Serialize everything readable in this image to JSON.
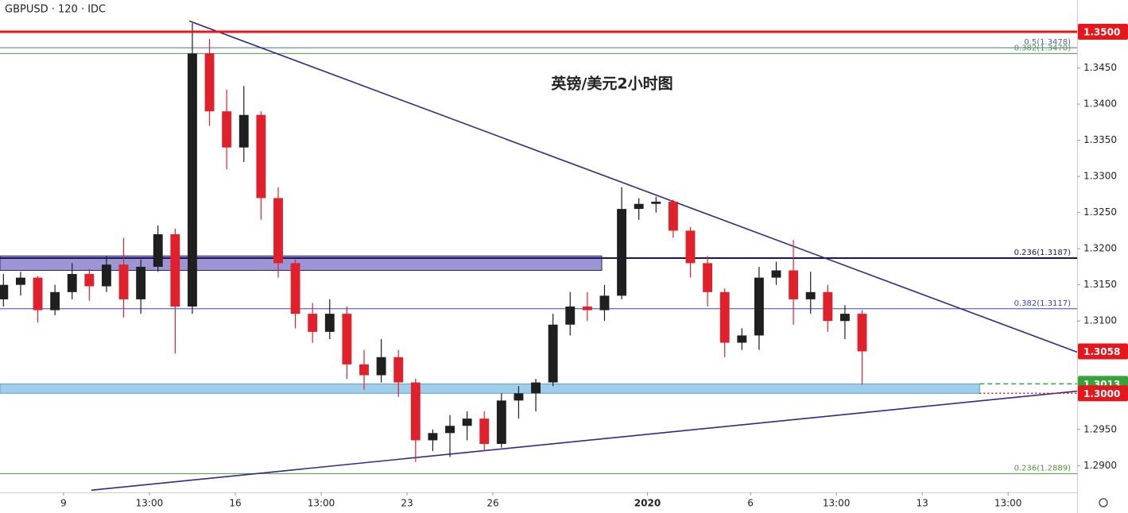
{
  "chart_data": {
    "type": "candlestick",
    "title": "GBPUSD · 120 · IDC",
    "annotation": "英镑/美元2小时图",
    "up_color": "#1f1f1f",
    "down_color": "#e0202a",
    "xlim": [
      -1.85,
      29.51
    ],
    "ylim": [
      1.2863,
      1.3544
    ],
    "xticks": [
      {
        "value": 0,
        "label": "9"
      },
      {
        "value": 2.5,
        "label": "13:00"
      },
      {
        "value": 5,
        "label": "16"
      },
      {
        "value": 7.5,
        "label": "13:00"
      },
      {
        "value": 10,
        "label": "23"
      },
      {
        "value": 12.5,
        "label": "26"
      },
      {
        "value": 17,
        "label": "2020"
      },
      {
        "value": 20,
        "label": "6"
      },
      {
        "value": 22.5,
        "label": "13:00"
      },
      {
        "value": 25,
        "label": "13"
      },
      {
        "value": 27.5,
        "label": "13:00"
      }
    ],
    "yticks": [
      {
        "value": 1.29,
        "label": "1.2900"
      },
      {
        "value": 1.295,
        "label": "1.2950"
      },
      {
        "value": 1.31,
        "label": "1.3100"
      },
      {
        "value": 1.315,
        "label": "1.3150"
      },
      {
        "value": 1.32,
        "label": "1.3200"
      },
      {
        "value": 1.325,
        "label": "1.3250"
      },
      {
        "value": 1.33,
        "label": "1.3300"
      },
      {
        "value": 1.335,
        "label": "1.3350"
      },
      {
        "value": 1.34,
        "label": "1.3400"
      },
      {
        "value": 1.345,
        "label": "1.3450"
      }
    ],
    "x": [
      -1.75,
      -1.25,
      -0.75,
      -0.25,
      0.25,
      0.75,
      1.25,
      1.75,
      2.25,
      2.75,
      3.25,
      3.75,
      4.25,
      4.75,
      5.25,
      5.75,
      6.25,
      6.75,
      7.25,
      7.75,
      8.25,
      8.75,
      9.25,
      9.75,
      10.25,
      10.75,
      11.25,
      11.75,
      12.25,
      12.75,
      13.25,
      13.75,
      14.25,
      14.75,
      15.25,
      15.75,
      16.25,
      16.75,
      17.25,
      17.75,
      18.25,
      18.75,
      19.25,
      19.75,
      20.25,
      20.75,
      21.25,
      21.75,
      22.25,
      22.75,
      23.25
    ],
    "ohlc": [
      [
        1.313,
        1.3165,
        1.312,
        1.315
      ],
      [
        1.315,
        1.3168,
        1.3135,
        1.316
      ],
      [
        1.316,
        1.3162,
        1.3098,
        1.3115
      ],
      [
        1.3115,
        1.315,
        1.3108,
        1.314
      ],
      [
        1.314,
        1.318,
        1.313,
        1.3165
      ],
      [
        1.3165,
        1.3172,
        1.3128,
        1.3148
      ],
      [
        1.3148,
        1.319,
        1.314,
        1.3178
      ],
      [
        1.3178,
        1.3215,
        1.3105,
        1.313
      ],
      [
        1.313,
        1.3185,
        1.311,
        1.3175
      ],
      [
        1.3175,
        1.3232,
        1.3168,
        1.322
      ],
      [
        1.322,
        1.3228,
        1.3055,
        1.312
      ],
      [
        1.312,
        1.3512,
        1.311,
        1.347
      ],
      [
        1.347,
        1.349,
        1.337,
        1.339
      ],
      [
        1.339,
        1.342,
        1.331,
        1.334
      ],
      [
        1.334,
        1.3425,
        1.332,
        1.3385
      ],
      [
        1.3385,
        1.339,
        1.324,
        1.327
      ],
      [
        1.327,
        1.3285,
        1.316,
        1.318
      ],
      [
        1.318,
        1.3185,
        1.309,
        1.311
      ],
      [
        1.311,
        1.3125,
        1.307,
        1.3085
      ],
      [
        1.3085,
        1.313,
        1.3075,
        1.311
      ],
      [
        1.311,
        1.312,
        1.302,
        1.304
      ],
      [
        1.304,
        1.306,
        1.3005,
        1.3025
      ],
      [
        1.3025,
        1.3075,
        1.3015,
        1.305
      ],
      [
        1.305,
        1.306,
        1.2995,
        1.3015
      ],
      [
        1.3015,
        1.302,
        1.2905,
        1.2935
      ],
      [
        1.2935,
        1.295,
        1.292,
        1.2945
      ],
      [
        1.2945,
        1.297,
        1.2912,
        1.2955
      ],
      [
        1.2955,
        1.2975,
        1.2935,
        1.2965
      ],
      [
        1.2965,
        1.2975,
        1.292,
        1.293
      ],
      [
        1.293,
        1.3,
        1.2925,
        1.299
      ],
      [
        1.299,
        1.301,
        1.2965,
        1.3
      ],
      [
        1.3,
        1.302,
        1.2975,
        1.3015
      ],
      [
        1.3015,
        1.311,
        1.301,
        1.3095
      ],
      [
        1.3095,
        1.314,
        1.308,
        1.312
      ],
      [
        1.312,
        1.314,
        1.31,
        1.3115
      ],
      [
        1.3115,
        1.315,
        1.31,
        1.3135
      ],
      [
        1.3135,
        1.3285,
        1.313,
        1.3255
      ],
      [
        1.3255,
        1.327,
        1.324,
        1.3262
      ],
      [
        1.3262,
        1.3272,
        1.325,
        1.3265
      ],
      [
        1.3265,
        1.3268,
        1.3215,
        1.3225
      ],
      [
        1.3225,
        1.323,
        1.316,
        1.318
      ],
      [
        1.318,
        1.319,
        1.312,
        1.314
      ],
      [
        1.314,
        1.3145,
        1.305,
        1.307
      ],
      [
        1.307,
        1.309,
        1.306,
        1.308
      ],
      [
        1.308,
        1.3175,
        1.306,
        1.316
      ],
      [
        1.316,
        1.3182,
        1.315,
        1.317
      ],
      [
        1.317,
        1.3212,
        1.3095,
        1.313
      ],
      [
        1.313,
        1.3168,
        1.311,
        1.314
      ],
      [
        1.314,
        1.315,
        1.3085,
        1.31
      ],
      [
        1.31,
        1.3122,
        1.3075,
        1.311
      ],
      [
        1.311,
        1.3115,
        1.3012,
        1.3058
      ]
    ],
    "levels": [
      {
        "value": 1.3478,
        "label": "0.5(1.3478)",
        "color": "#5361b8"
      },
      {
        "value": 1.347,
        "label": "0.382(1.3470)",
        "color": "#4c9a3a"
      },
      {
        "value": 1.3187,
        "label": "0.236(1.3187)",
        "color": "#1a1550"
      },
      {
        "value": 1.3117,
        "label": "0.382(1.3117)",
        "color": "#3846b8"
      },
      {
        "value": 1.2889,
        "label": "0.236(1.2889)",
        "color": "#4c9a3a"
      }
    ],
    "zones": [
      {
        "low": 1.317,
        "high": 1.319,
        "x_end": 15.67,
        "color": "#8b85cc",
        "border": "#2a2280"
      },
      {
        "low": 1.3,
        "high": 1.3013,
        "x_end": 26.67,
        "color": "#8ec6e6",
        "border": "#5aa0d0"
      }
    ],
    "trendlines": [
      {
        "points": [
          [
            3.66,
            1.3515
          ],
          [
            29.51,
            1.3057
          ]
        ],
        "color": "#2f2a8a"
      },
      {
        "points": [
          [
            0.81,
            1.2866
          ],
          [
            29.51,
            1.3003
          ]
        ],
        "color": "#2f2a8a"
      }
    ],
    "price_tags": [
      {
        "value": 1.35,
        "label": "1.3500",
        "color": "#e5171c",
        "line": "solid",
        "line_from": -1.85
      },
      {
        "value": 1.3058,
        "label": "1.3058",
        "color": "#e5171c",
        "line": "none",
        "line_from": 29.51
      },
      {
        "value": 1.3013,
        "label": "1.3013",
        "color": "#37a23a",
        "line": "dashed",
        "line_from": 26.67
      },
      {
        "value": 1.3,
        "label": "1.3000",
        "color": "#e5171c",
        "line": "dotted",
        "line_from": 26.67
      }
    ]
  }
}
